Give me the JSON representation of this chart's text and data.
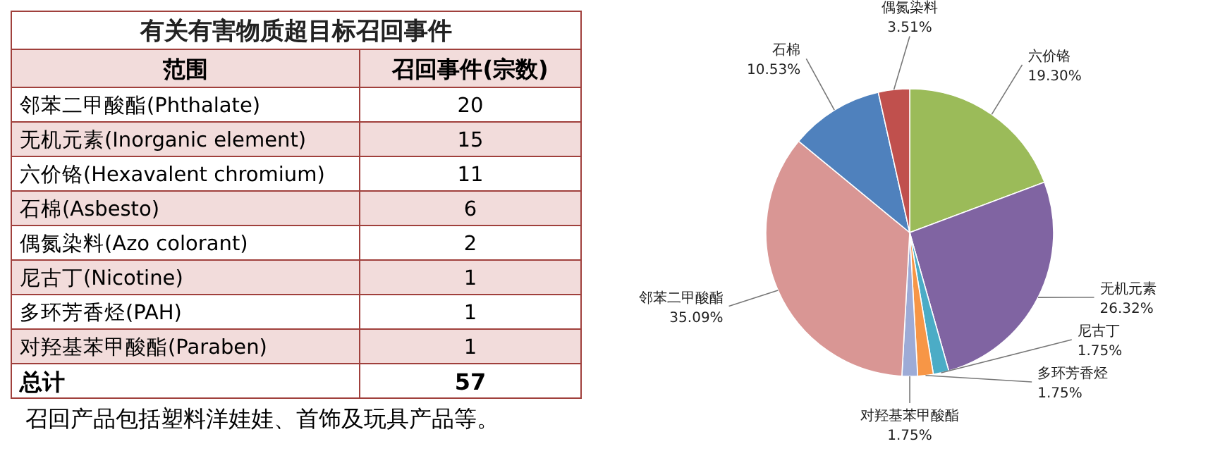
{
  "chart_data": [
    {
      "type": "other",
      "title": "有关有害物质超目标召回事件",
      "xlabel": "范围",
      "ylabel": "召回事件(宗数)",
      "categories": [
        "邻苯二甲酸酯(Phthalate)",
        "无机元素(Inorganic element)",
        "六价铬(Hexavalent chromium)",
        "石棉(Asbesto)",
        "偶氮染料(Azo colorant)",
        "尼古丁(Nicotine)",
        "多环芳香烃(PAH)",
        "对羟基苯甲酸酯(Paraben)"
      ],
      "values": [
        20,
        15,
        11,
        6,
        2,
        1,
        1,
        1
      ],
      "data_labels": true,
      "annotations": [
        "总计",
        "57",
        "召回产品包括塑料洋娃娃、首饰及玩具产品等。"
      ]
    },
    {
      "type": "pie",
      "categories": [
        "六价铬",
        "无机元素",
        "尼古丁",
        "多环芳香烃",
        "对羟基苯甲酸酯",
        "邻苯二甲酸酯",
        "石棉",
        "偶氮染料"
      ],
      "values": [
        19.3,
        26.32,
        1.75,
        1.75,
        1.75,
        35.09,
        10.53,
        3.51
      ],
      "value_labels": [
        "19.30%",
        "26.32%",
        "1.75%",
        "1.75%",
        "1.75%",
        "35.09%",
        "10.53%",
        "3.51%"
      ],
      "colors": [
        "#9bbb59",
        "#8064a2",
        "#4bacc6",
        "#f79646",
        "#9dabd6",
        "#d99694",
        "#4f81bd",
        "#c0504d"
      ]
    }
  ]
}
